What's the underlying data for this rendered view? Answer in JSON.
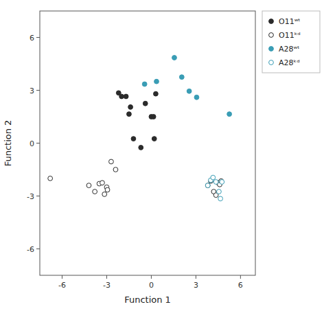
{
  "chart_data": {
    "type": "scatter",
    "xlabel": "Function 1",
    "ylabel": "Function 2",
    "xlim": [
      -7.5,
      7
    ],
    "ylim": [
      -7.5,
      7.5
    ],
    "xticks": [
      -6,
      -3,
      0,
      3,
      6
    ],
    "yticks": [
      -6,
      -3,
      0,
      3,
      6
    ],
    "grid": false,
    "legend": "right",
    "series": [
      {
        "name": "O11ʷᵗ",
        "color": "#2b2b2b",
        "marker": "circle",
        "x": [
          -2.2,
          -2.0,
          -1.7,
          -1.5,
          -1.4,
          -1.2,
          -0.7,
          -0.4,
          0.0,
          0.15,
          0.2,
          0.3
        ],
        "values": [
          2.85,
          2.65,
          2.65,
          1.65,
          2.05,
          0.25,
          -0.25,
          2.25,
          1.5,
          1.5,
          0.25,
          2.8
        ]
      },
      {
        "name": "O11ᵏᵈ",
        "color": "#2b2b2b",
        "marker": "open-circle",
        "x": [
          -6.8,
          -4.2,
          -3.8,
          -3.5,
          -3.3,
          -3.15,
          -3.0,
          -2.95,
          -2.7,
          -2.4,
          3.8,
          4.0,
          4.2,
          4.35,
          4.5,
          4.6,
          4.7
        ],
        "values": [
          -2.0,
          -2.4,
          -2.75,
          -2.3,
          -2.25,
          -2.9,
          -2.5,
          -2.65,
          -1.05,
          -1.5,
          -2.4,
          -2.15,
          -2.75,
          -2.95,
          -2.25,
          -2.35,
          -2.15
        ]
      },
      {
        "name": "A28ʷᵗ",
        "color": "#3a9db5",
        "marker": "circle",
        "x": [
          -0.45,
          0.35,
          1.55,
          2.05,
          2.55,
          3.05,
          5.25
        ],
        "values": [
          3.35,
          3.5,
          4.85,
          3.75,
          2.95,
          2.6,
          1.65
        ]
      },
      {
        "name": "A28ᵏᵈ",
        "color": "#3a9db5",
        "marker": "open-circle",
        "x": [
          3.8,
          4.0,
          4.15,
          4.35,
          4.55,
          4.65,
          4.75
        ],
        "values": [
          -2.4,
          -2.1,
          -1.95,
          -2.2,
          -2.75,
          -3.15,
          -2.2
        ]
      }
    ]
  }
}
